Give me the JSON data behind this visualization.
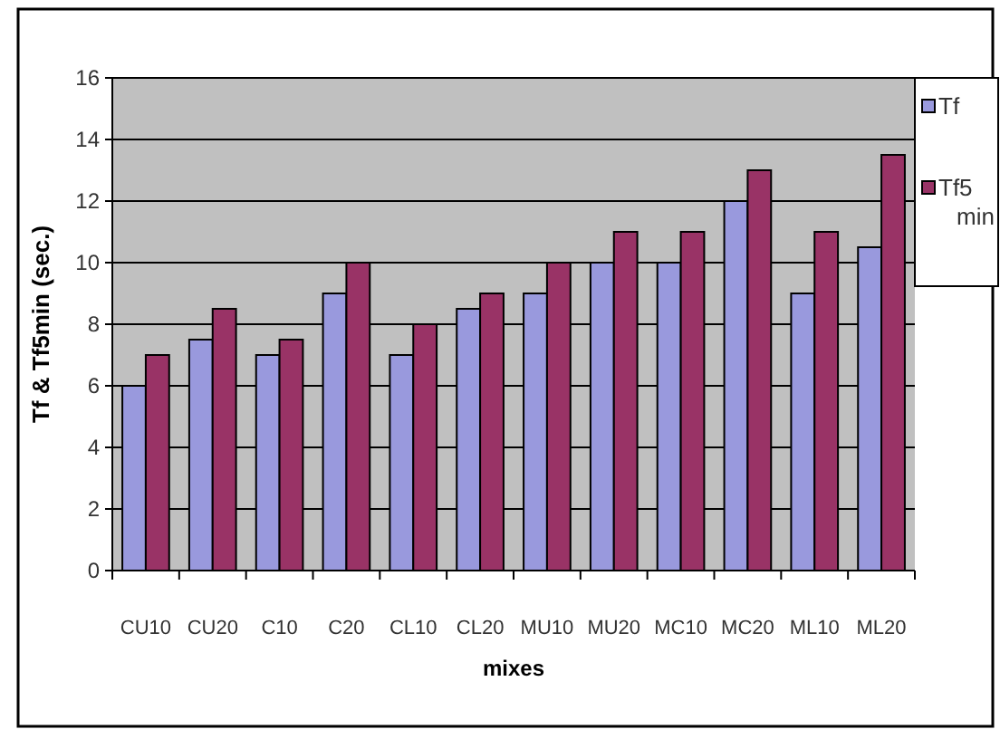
{
  "chart_data": {
    "type": "bar",
    "xlabel": "mixes",
    "ylabel": "Tf & Tf5min (sec.)",
    "categories": [
      "CU10",
      "CU20",
      "C10",
      "C20",
      "CL10",
      "CL20",
      "MU10",
      "MU20",
      "MC10",
      "MC20",
      "ML10",
      "ML20"
    ],
    "series": [
      {
        "name": "Tf",
        "color": "#9999dd",
        "values": [
          6,
          7.5,
          7,
          9,
          7,
          8.5,
          9,
          10,
          10,
          12,
          9,
          10.5
        ]
      },
      {
        "name": "Tf5 min",
        "color": "#993366",
        "values": [
          7,
          8.5,
          7.5,
          10,
          8,
          9,
          10,
          11,
          11,
          13,
          11,
          13.5
        ]
      }
    ],
    "ylim": [
      0,
      16
    ],
    "yticks": [
      0,
      2,
      4,
      6,
      8,
      10,
      12,
      14,
      16
    ],
    "grid": "y",
    "legend": "right"
  }
}
